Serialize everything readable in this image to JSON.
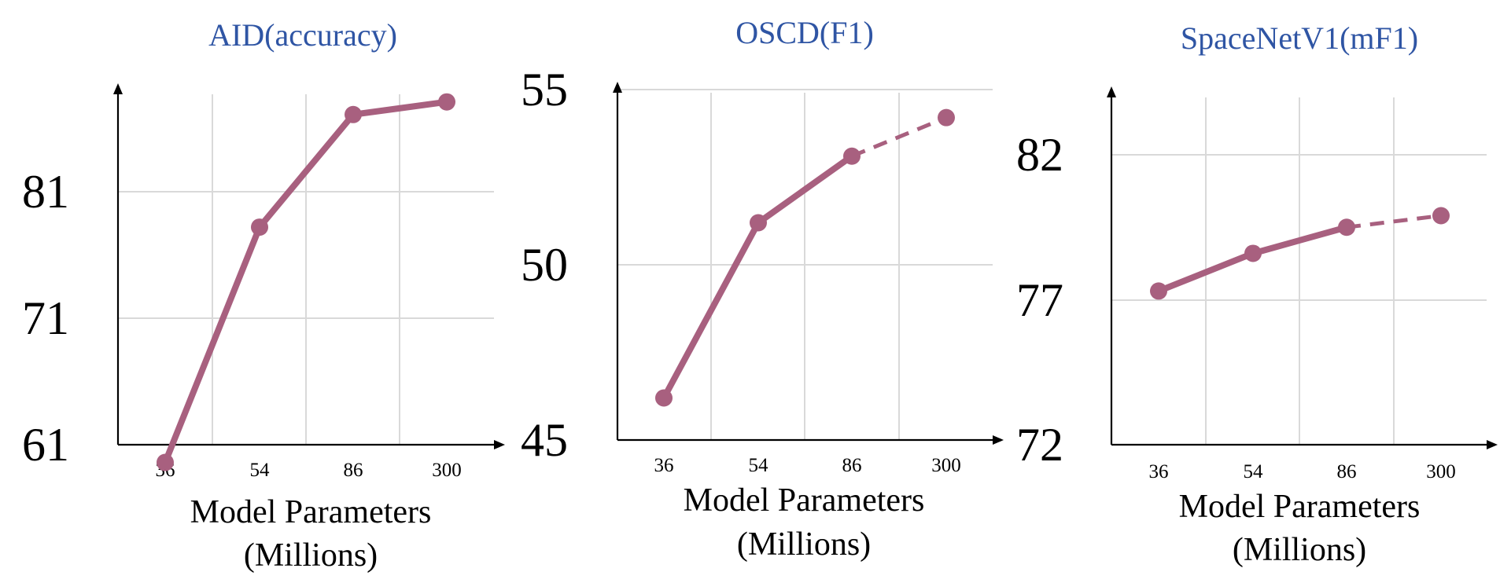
{
  "style": {
    "series_color": "#A8607F",
    "title_color": "#2F55A4"
  },
  "chart_data": [
    {
      "type": "line",
      "title": "AID(accuracy)",
      "xlabel": "Model Parameters (Millions)",
      "xlabel_lines": [
        "Model Parameters",
        "(Millions)"
      ],
      "categories": [
        "36",
        "54",
        "86",
        "300"
      ],
      "yticks": [
        "61",
        "71",
        "81"
      ],
      "ylim": [
        61,
        90
      ],
      "grid": true,
      "series": [
        {
          "values": [
            59.6,
            78.2,
            87.1,
            88.1
          ],
          "dashed_from": null
        }
      ]
    },
    {
      "type": "line",
      "title": "OSCD(F1)",
      "xlabel": "Model Parameters (Millions)",
      "xlabel_lines": [
        "Model Parameters",
        "(Millions)"
      ],
      "categories": [
        "36",
        "54",
        "86",
        "300"
      ],
      "yticks": [
        "45",
        "50",
        "55"
      ],
      "ylim": [
        45,
        55
      ],
      "grid": true,
      "series": [
        {
          "values": [
            46.2,
            51.2,
            53.1,
            54.2
          ],
          "dashed_from": 2
        }
      ]
    },
    {
      "type": "line",
      "title": "SpaceNetV1(mF1)",
      "xlabel": "Model Parameters (Millions)",
      "xlabel_lines": [
        "Model Parameters",
        "(Millions)"
      ],
      "categories": [
        "36",
        "54",
        "86",
        "300"
      ],
      "yticks": [
        "72",
        "77",
        "82"
      ],
      "ylim": [
        72,
        84
      ],
      "grid": true,
      "series": [
        {
          "values": [
            77.3,
            78.6,
            79.5,
            79.9
          ],
          "dashed_from": 2
        }
      ]
    }
  ]
}
